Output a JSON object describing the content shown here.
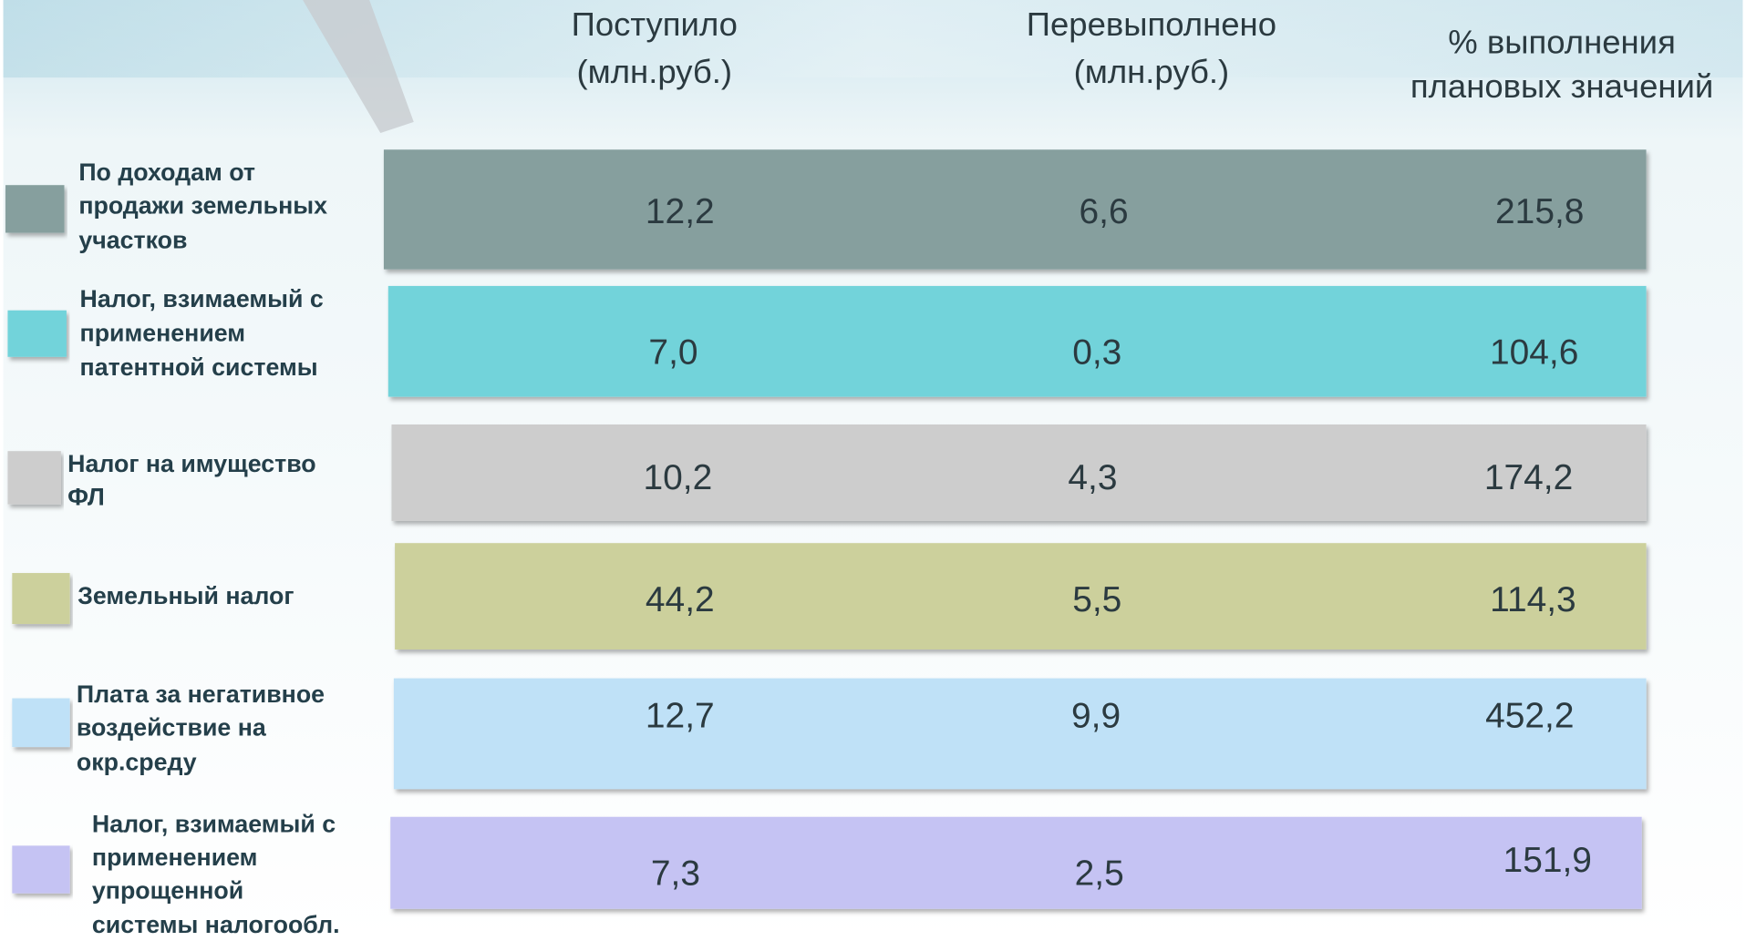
{
  "header": {
    "columns": [
      [
        "Поступило",
        "(млн.руб.)"
      ],
      [
        "Перевыполнено",
        "(млн.руб.)"
      ],
      [
        "% выполнения",
        "плановых значений"
      ]
    ]
  },
  "table": {
    "rows": [
      {
        "label": [
          "По доходам от",
          "продажи земельных",
          "участков"
        ],
        "cells": [
          "12,2",
          "6,6",
          "215,8"
        ]
      },
      {
        "label": [
          "Налог, взимаемый с",
          "применением",
          "патентной системы"
        ],
        "cells": [
          "7,0",
          "0,3",
          "104,6"
        ]
      },
      {
        "label": [
          "Налог на имущество",
          "ФЛ"
        ],
        "cells": [
          "10,2",
          "4,3",
          "174,2"
        ]
      },
      {
        "label": [
          "Земельный налог"
        ],
        "cells": [
          "44,2",
          "5,5",
          "114,3"
        ]
      },
      {
        "label": [
          "Плата за негативное",
          "воздействие на",
          "окр.среду"
        ],
        "cells": [
          "12,7",
          "9,9",
          "452,2"
        ]
      },
      {
        "label": [
          "Налог, взимаемый с",
          "применением",
          "упрощенной",
          "системы налогообл."
        ],
        "cells": [
          "7,3",
          "2,5",
          "151,9"
        ]
      }
    ]
  }
}
